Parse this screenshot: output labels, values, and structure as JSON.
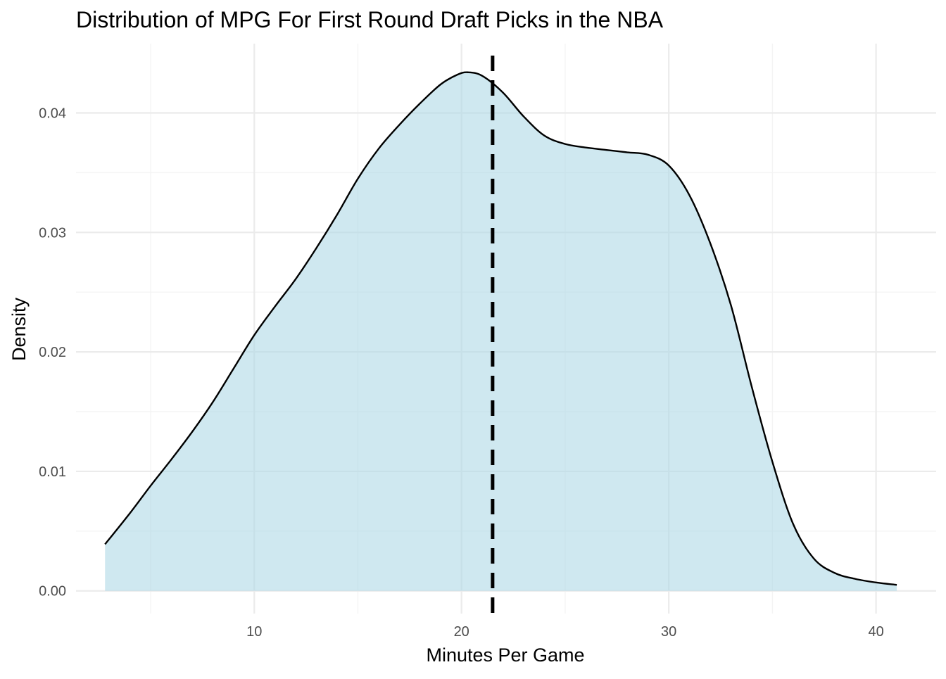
{
  "chart_data": {
    "type": "area",
    "title": "Distribution of MPG For First Round Draft Picks in the NBA",
    "xlabel": "Minutes Per Game",
    "ylabel": "Density",
    "xlim": [
      1.4,
      42.9
    ],
    "ylim": [
      -0.0019,
      0.0458
    ],
    "x_ticks": [
      10,
      20,
      30,
      40
    ],
    "x_tick_labels": [
      "10",
      "20",
      "30",
      "40"
    ],
    "x_minor_ticks": [
      5,
      15,
      25,
      35
    ],
    "y_ticks": [
      0.0,
      0.01,
      0.02,
      0.03,
      0.04
    ],
    "y_tick_labels": [
      "0.00",
      "0.01",
      "0.02",
      "0.03",
      "0.04"
    ],
    "y_minor_ticks": [
      0.005,
      0.015,
      0.025,
      0.035
    ],
    "grid": true,
    "legend": "none",
    "series": [
      {
        "x": [
          2.8,
          4.0,
          5.0,
          6.0,
          7.0,
          8.0,
          9.0,
          10.0,
          11.0,
          12.0,
          13.0,
          14.0,
          15.0,
          16.0,
          17.0,
          18.0,
          19.0,
          19.8,
          20.3,
          21.0,
          22.0,
          23.0,
          24.0,
          25.0,
          26.0,
          27.0,
          28.0,
          29.0,
          30.0,
          31.0,
          32.0,
          33.0,
          34.0,
          35.0,
          36.0,
          37.0,
          38.0,
          39.0,
          40.0,
          41.0
        ],
        "y": [
          0.0039,
          0.0065,
          0.0088,
          0.011,
          0.0133,
          0.0158,
          0.0186,
          0.0214,
          0.0238,
          0.0261,
          0.0287,
          0.0315,
          0.0345,
          0.037,
          0.039,
          0.0408,
          0.0424,
          0.0432,
          0.0434,
          0.0431,
          0.0417,
          0.0397,
          0.0381,
          0.0374,
          0.0371,
          0.0369,
          0.0367,
          0.0365,
          0.0356,
          0.0331,
          0.0291,
          0.0239,
          0.0171,
          0.0108,
          0.0056,
          0.0027,
          0.0015,
          0.001,
          0.0007,
          0.0005
        ]
      }
    ],
    "vline": {
      "x": 21.5,
      "style": "dashed"
    },
    "colors": {
      "fill": "#add8e6",
      "fill_opacity": 0.58,
      "line": "#000000",
      "vline": "#000000",
      "grid_major": "#ebebeb",
      "grid_minor": "#f4f4f4",
      "tick_text": "#4d4d4d",
      "title_text": "#000000"
    }
  }
}
